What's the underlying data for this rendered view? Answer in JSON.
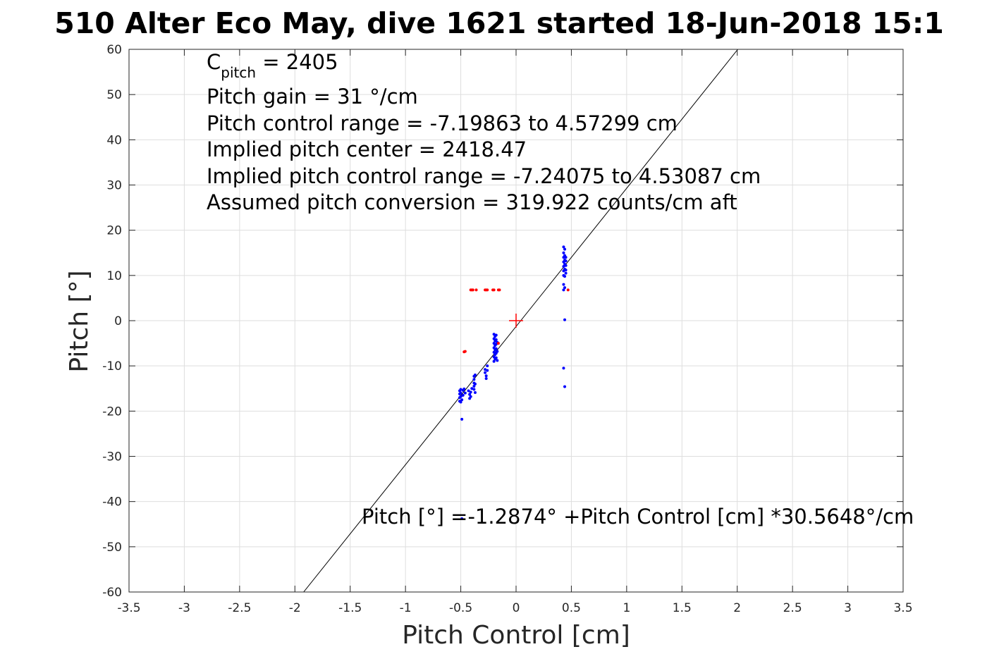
{
  "chart_data": {
    "type": "scatter",
    "title": "510 Alter Eco May, dive 1621 started 18-Jun-2018 15:1",
    "xlabel": "Pitch Control [cm]",
    "ylabel": "Pitch [°]",
    "xlim": [
      -3.5,
      3.5
    ],
    "ylim": [
      -60,
      60
    ],
    "xticks": [
      -3.5,
      -3,
      -2.5,
      -2,
      -1.5,
      -1,
      -0.5,
      0,
      0.5,
      1,
      1.5,
      2,
      2.5,
      3,
      3.5
    ],
    "xtick_labels": [
      "-3.5",
      "-3",
      "-2.5",
      "-2",
      "-1.5",
      "-1",
      "-0.5",
      "0",
      "0.5",
      "1",
      "1.5",
      "2",
      "2.5",
      "3",
      "3.5"
    ],
    "yticks": [
      60,
      50,
      40,
      30,
      20,
      10,
      0,
      -10,
      -20,
      -30,
      -40,
      -50,
      -60
    ],
    "ytick_labels": [
      "60",
      "50",
      "40",
      "30",
      "20",
      "10",
      "0",
      "-10",
      "-20",
      "-30",
      "-40",
      "-50",
      "-60"
    ],
    "grid": true,
    "fit_line": {
      "intercept": -1.2874,
      "slope": 30.5648,
      "color": "#000000"
    },
    "center_marker": {
      "x": 0,
      "y": 0,
      "color": "#ff0000"
    },
    "series": [
      {
        "color": "#0000ff",
        "points": [
          [
            -0.51,
            -15.5
          ],
          [
            -0.51,
            -16.2
          ],
          [
            -0.51,
            -17.0
          ],
          [
            -0.51,
            -17.8
          ],
          [
            -0.5,
            -16.0
          ],
          [
            -0.5,
            -16.8
          ],
          [
            -0.5,
            -18.0
          ],
          [
            -0.5,
            -15.2
          ],
          [
            -0.49,
            -17.5
          ],
          [
            -0.49,
            -21.8
          ],
          [
            -0.48,
            -15.4
          ],
          [
            -0.48,
            -16.5
          ],
          [
            -0.47,
            -15.1
          ],
          [
            -0.46,
            -16.0
          ],
          [
            -0.43,
            -15.5
          ],
          [
            -0.42,
            -16.3
          ],
          [
            -0.42,
            -17.2
          ],
          [
            -0.41,
            -15.8
          ],
          [
            -0.41,
            -16.8
          ],
          [
            -0.4,
            -15.0
          ],
          [
            -0.38,
            -12.3
          ],
          [
            -0.38,
            -13.0
          ],
          [
            -0.38,
            -13.8
          ],
          [
            -0.38,
            -14.5
          ],
          [
            -0.38,
            -15.2
          ],
          [
            -0.37,
            -12.0
          ],
          [
            -0.37,
            -15.9
          ],
          [
            -0.37,
            -14.0
          ],
          [
            -0.28,
            -10.8
          ],
          [
            -0.28,
            -11.5
          ],
          [
            -0.27,
            -12.2
          ],
          [
            -0.27,
            -12.8
          ],
          [
            -0.26,
            -11.0
          ],
          [
            -0.26,
            -10.0
          ],
          [
            -0.2,
            -3.0
          ],
          [
            -0.2,
            -4.0
          ],
          [
            -0.2,
            -5.0
          ],
          [
            -0.2,
            -6.0
          ],
          [
            -0.2,
            -7.0
          ],
          [
            -0.2,
            -8.0
          ],
          [
            -0.2,
            -9.0
          ],
          [
            -0.19,
            -3.5
          ],
          [
            -0.19,
            -4.5
          ],
          [
            -0.19,
            -5.5
          ],
          [
            -0.19,
            -6.5
          ],
          [
            -0.19,
            -7.5
          ],
          [
            -0.19,
            -8.5
          ],
          [
            -0.18,
            -3.2
          ],
          [
            -0.18,
            -4.2
          ],
          [
            -0.18,
            -5.2
          ],
          [
            -0.18,
            -6.2
          ],
          [
            -0.18,
            -7.2
          ],
          [
            -0.18,
            -8.2
          ],
          [
            -0.17,
            -4.8
          ],
          [
            -0.17,
            -6.8
          ],
          [
            -0.17,
            -8.8
          ],
          [
            0.43,
            16.3
          ],
          [
            0.43,
            15.0
          ],
          [
            0.43,
            14.0
          ],
          [
            0.43,
            13.0
          ],
          [
            0.43,
            12.0
          ],
          [
            0.43,
            11.0
          ],
          [
            0.43,
            10.0
          ],
          [
            0.43,
            8.0
          ],
          [
            0.43,
            6.8
          ],
          [
            0.44,
            15.8
          ],
          [
            0.44,
            14.4
          ],
          [
            0.44,
            13.4
          ],
          [
            0.44,
            12.5
          ],
          [
            0.44,
            11.4
          ],
          [
            0.44,
            9.8
          ],
          [
            0.44,
            7.3
          ],
          [
            0.45,
            14.0
          ],
          [
            0.45,
            13.2
          ],
          [
            0.45,
            12.2
          ],
          [
            0.45,
            11.2
          ],
          [
            0.45,
            10.5
          ],
          [
            0.44,
            0.2
          ],
          [
            0.43,
            -10.5
          ],
          [
            0.44,
            -14.6
          ],
          [
            -0.49,
            -43.8
          ]
        ]
      },
      {
        "color": "#ff0000",
        "points": [
          [
            -0.41,
            6.8
          ],
          [
            -0.4,
            6.8
          ],
          [
            -0.39,
            6.8
          ],
          [
            -0.36,
            6.8
          ],
          [
            -0.28,
            6.8
          ],
          [
            -0.27,
            6.8
          ],
          [
            -0.26,
            6.8
          ],
          [
            -0.21,
            6.8
          ],
          [
            -0.2,
            6.8
          ],
          [
            -0.16,
            6.8
          ],
          [
            -0.15,
            6.8
          ],
          [
            0.47,
            6.8
          ],
          [
            -0.47,
            -6.9
          ],
          [
            -0.46,
            -6.8
          ],
          [
            -0.16,
            -5.0
          ]
        ]
      }
    ]
  },
  "annotations": {
    "cpitch_main": "C",
    "cpitch_sub": "pitch",
    "cpitch_rest": " = 2405",
    "gain": "Pitch gain = 31 °/cm",
    "control_range": "Pitch control range = -7.19863 to 4.57299 cm",
    "implied_center": "Implied pitch center = 2418.47",
    "implied_range": "Implied pitch control range = -7.24075 to 4.53087 cm",
    "conversion": "Assumed pitch conversion = 319.922 counts/cm aft",
    "fit_equation": "Pitch [°] =-1.2874° +Pitch Control [cm] *30.5648°/cm"
  }
}
